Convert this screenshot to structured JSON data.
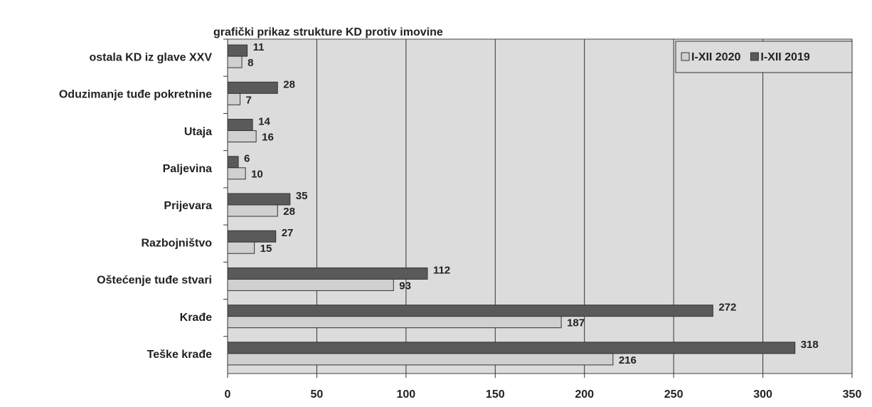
{
  "chart_data": {
    "type": "bar",
    "orientation": "horizontal",
    "title": "grafički prikaz strukture KD protiv imovine",
    "categories": [
      "ostala KD iz glave XXV",
      "Oduzimanje tuđe pokretnine",
      "Utaja",
      "Paljevina",
      "Prijevara",
      "Razbojništvo",
      "Oštećenje tuđe stvari",
      "Krađe",
      "Teške krađe"
    ],
    "series": [
      {
        "name": "I-XII 2020",
        "color": "#d0d0d0",
        "values": [
          8,
          7,
          16,
          10,
          28,
          15,
          93,
          187,
          216
        ]
      },
      {
        "name": "I-XII 2019",
        "color": "#5a5a5a",
        "values": [
          11,
          28,
          14,
          6,
          35,
          27,
          112,
          272,
          318
        ]
      }
    ],
    "xlim": [
      0,
      350
    ],
    "xticks": [
      0,
      50,
      100,
      150,
      200,
      250,
      300,
      350
    ],
    "grid": true,
    "legend": "top-right"
  }
}
